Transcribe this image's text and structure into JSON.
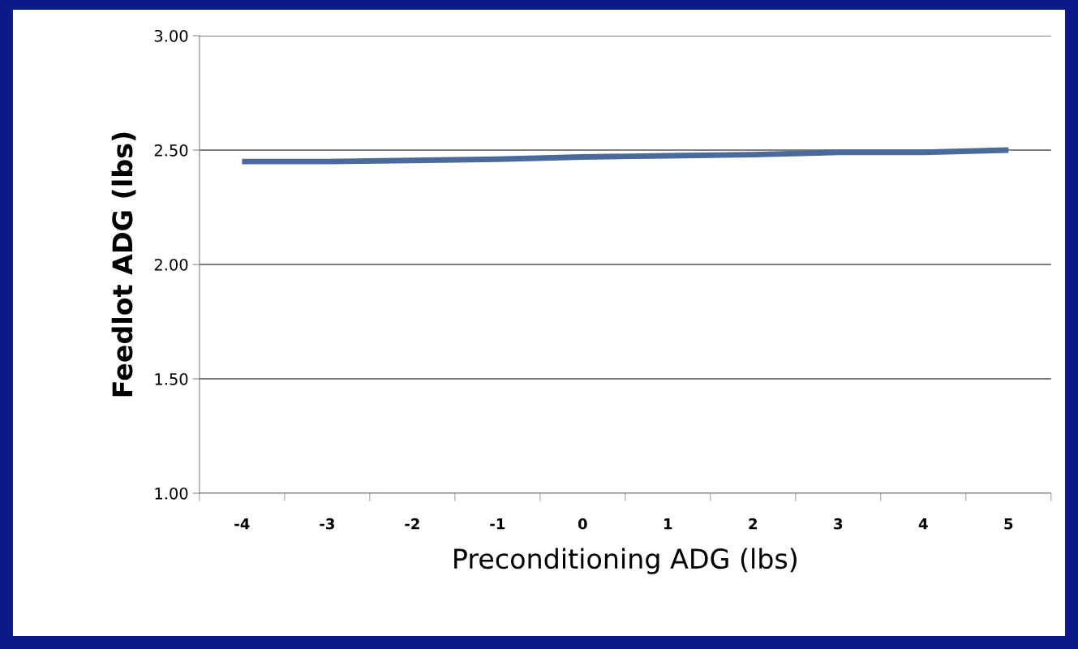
{
  "chart_data": {
    "type": "line",
    "xlabel": "Preconditioning ADG (lbs)",
    "ylabel": "Feedlot ADG (lbs)",
    "categories": [
      "-4",
      "-3",
      "-2",
      "-1",
      "0",
      "1",
      "2",
      "3",
      "4",
      "5"
    ],
    "series": [
      {
        "color": "#4a6a9c",
        "values": [
          2.45,
          2.45,
          2.455,
          2.46,
          2.47,
          2.475,
          2.48,
          2.49,
          2.49,
          2.5
        ]
      }
    ],
    "ylim": [
      1.0,
      3.0
    ],
    "yticks": [
      {
        "value": 1.0,
        "label": "1.00"
      },
      {
        "value": 1.5,
        "label": "1.50"
      },
      {
        "value": 2.0,
        "label": "2.00"
      },
      {
        "value": 2.5,
        "label": "2.50"
      },
      {
        "value": 3.0,
        "label": "3.00"
      }
    ],
    "grid": "y",
    "marker": "none",
    "line_style": "solid"
  }
}
